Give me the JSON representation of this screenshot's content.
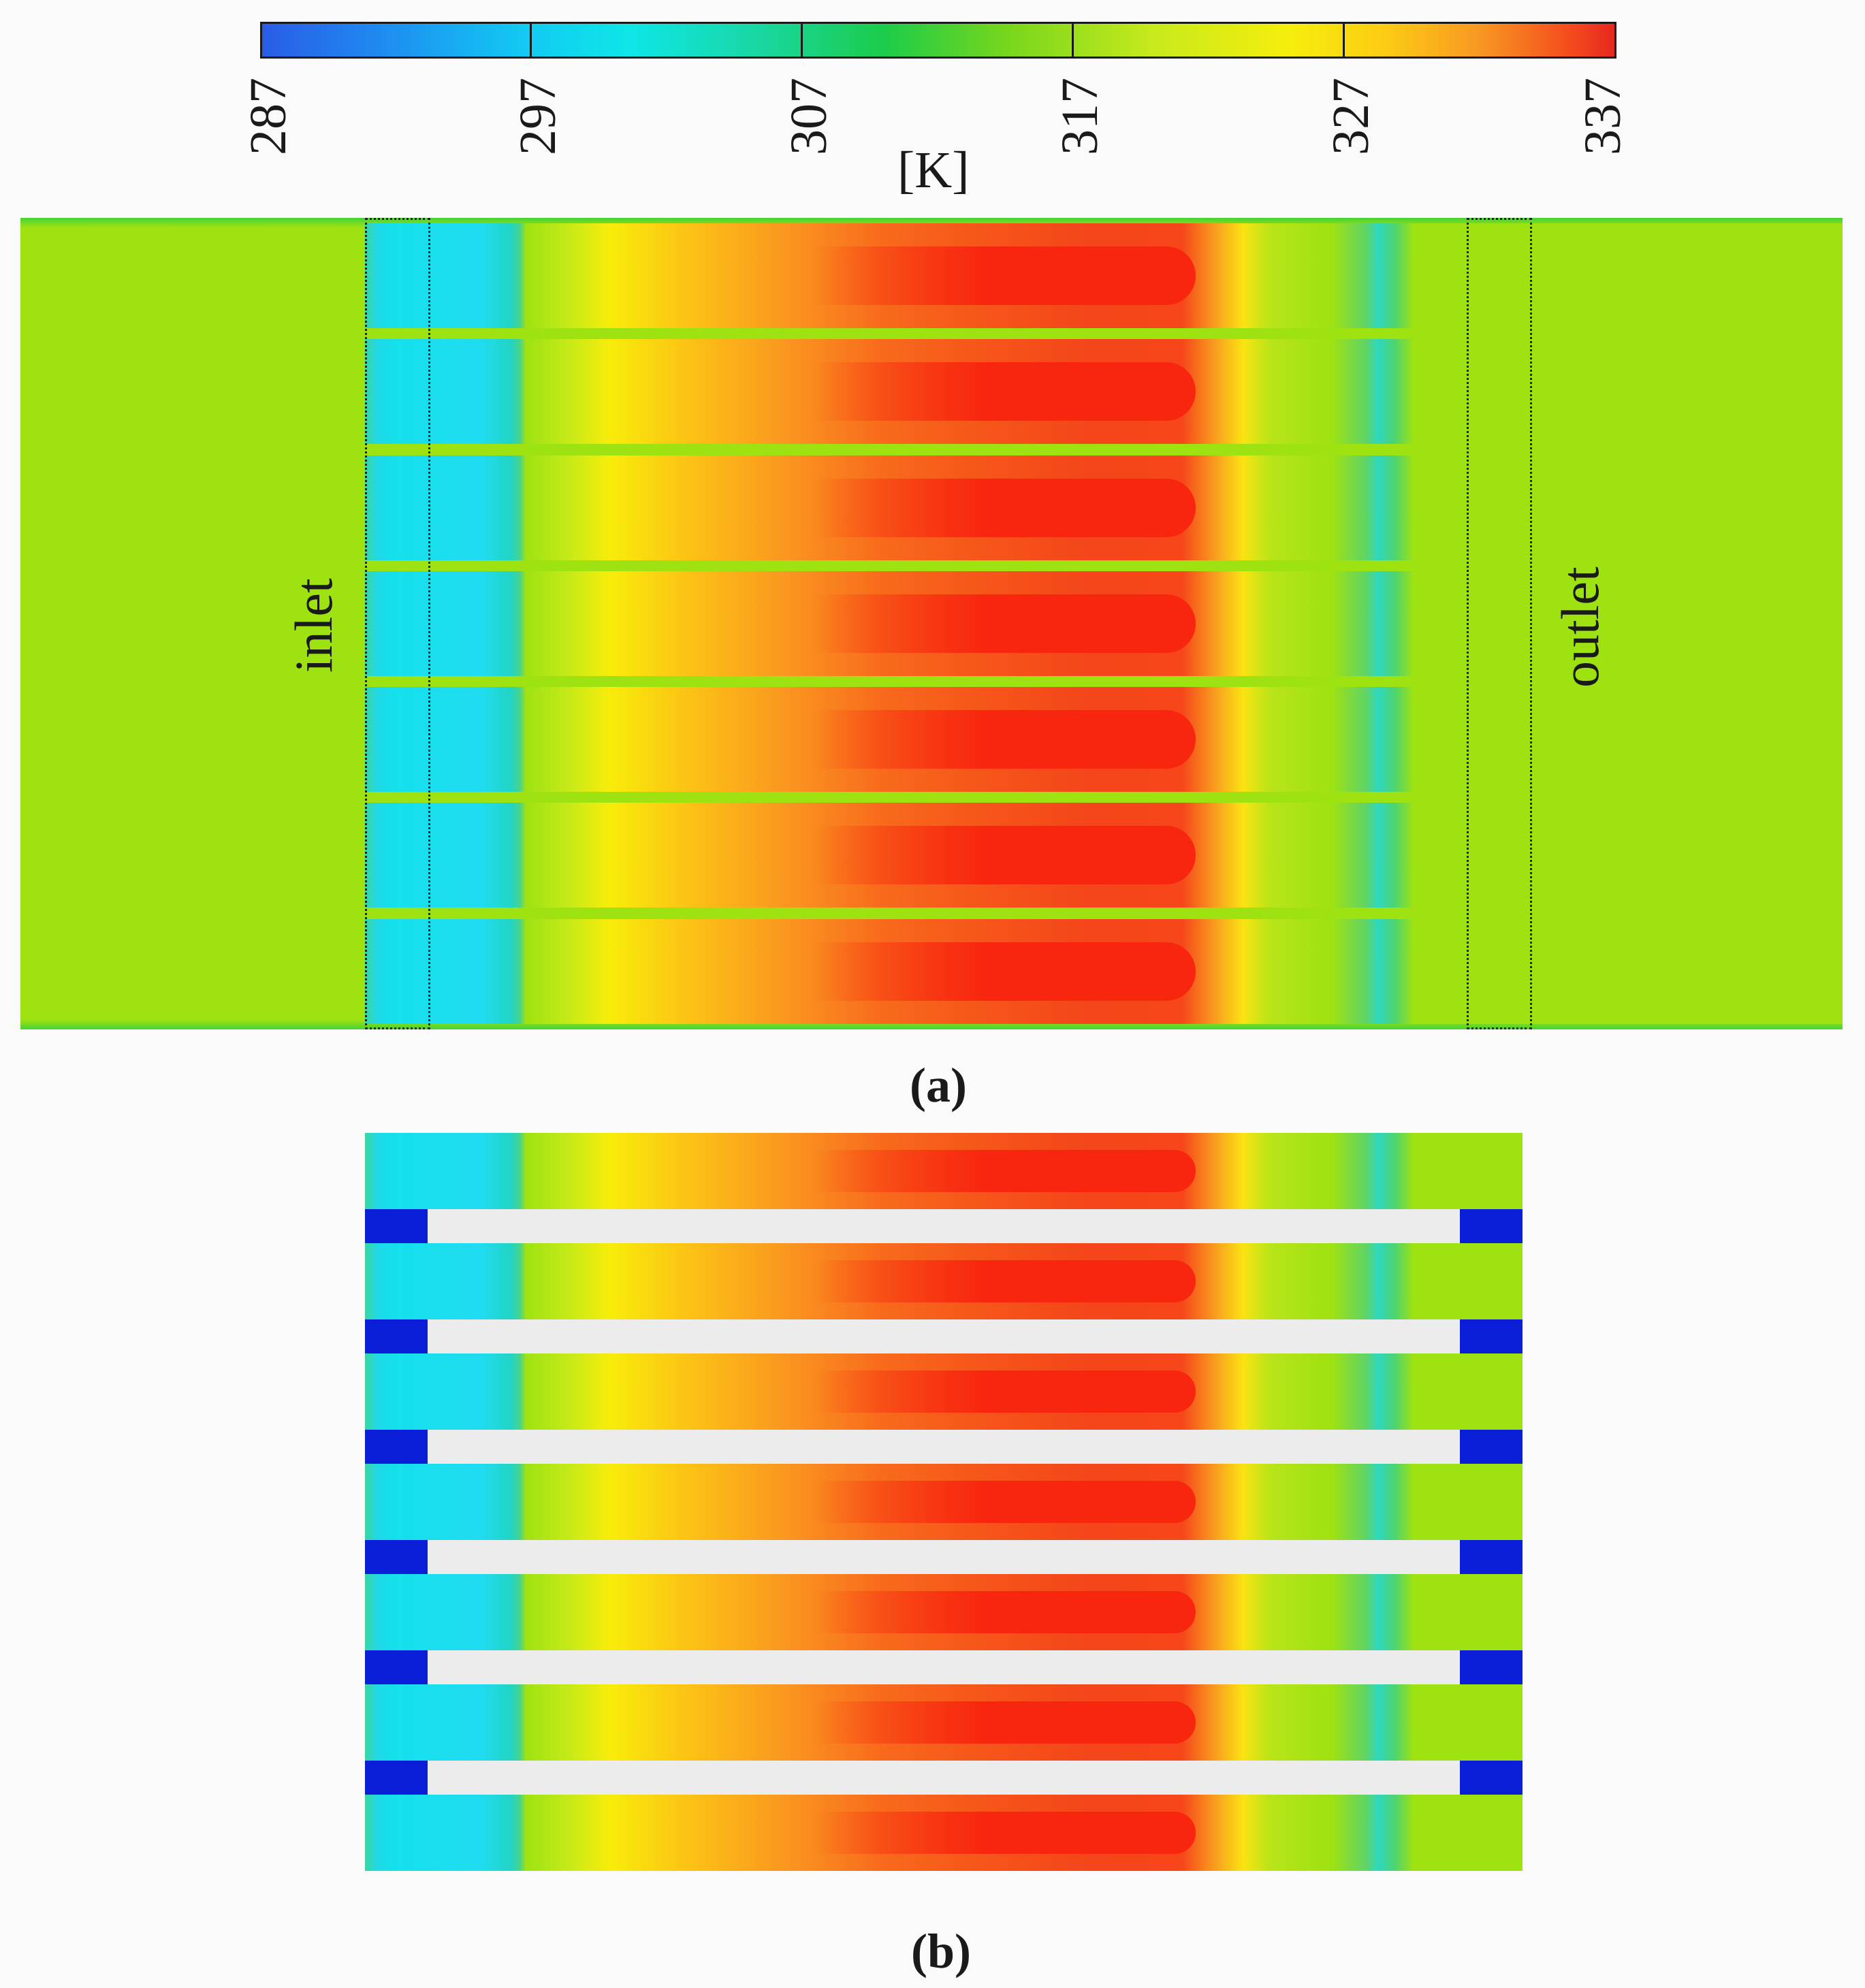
{
  "colorbar": {
    "ticks": [
      "287",
      "297",
      "307",
      "317",
      "327",
      "337"
    ],
    "unit": "[K]"
  },
  "panel_a": {
    "caption": "(a)",
    "inlet_label": "inlet",
    "outlet_label": "outlet",
    "channel_count": 7
  },
  "panel_b": {
    "caption": "(b)",
    "channel_count": 7
  },
  "colors": {
    "ambient": "#9ee212",
    "cold": "#14e0ec",
    "hot": "#f8260e",
    "fin": "#0a1ed8",
    "rib": "#ececec"
  }
}
